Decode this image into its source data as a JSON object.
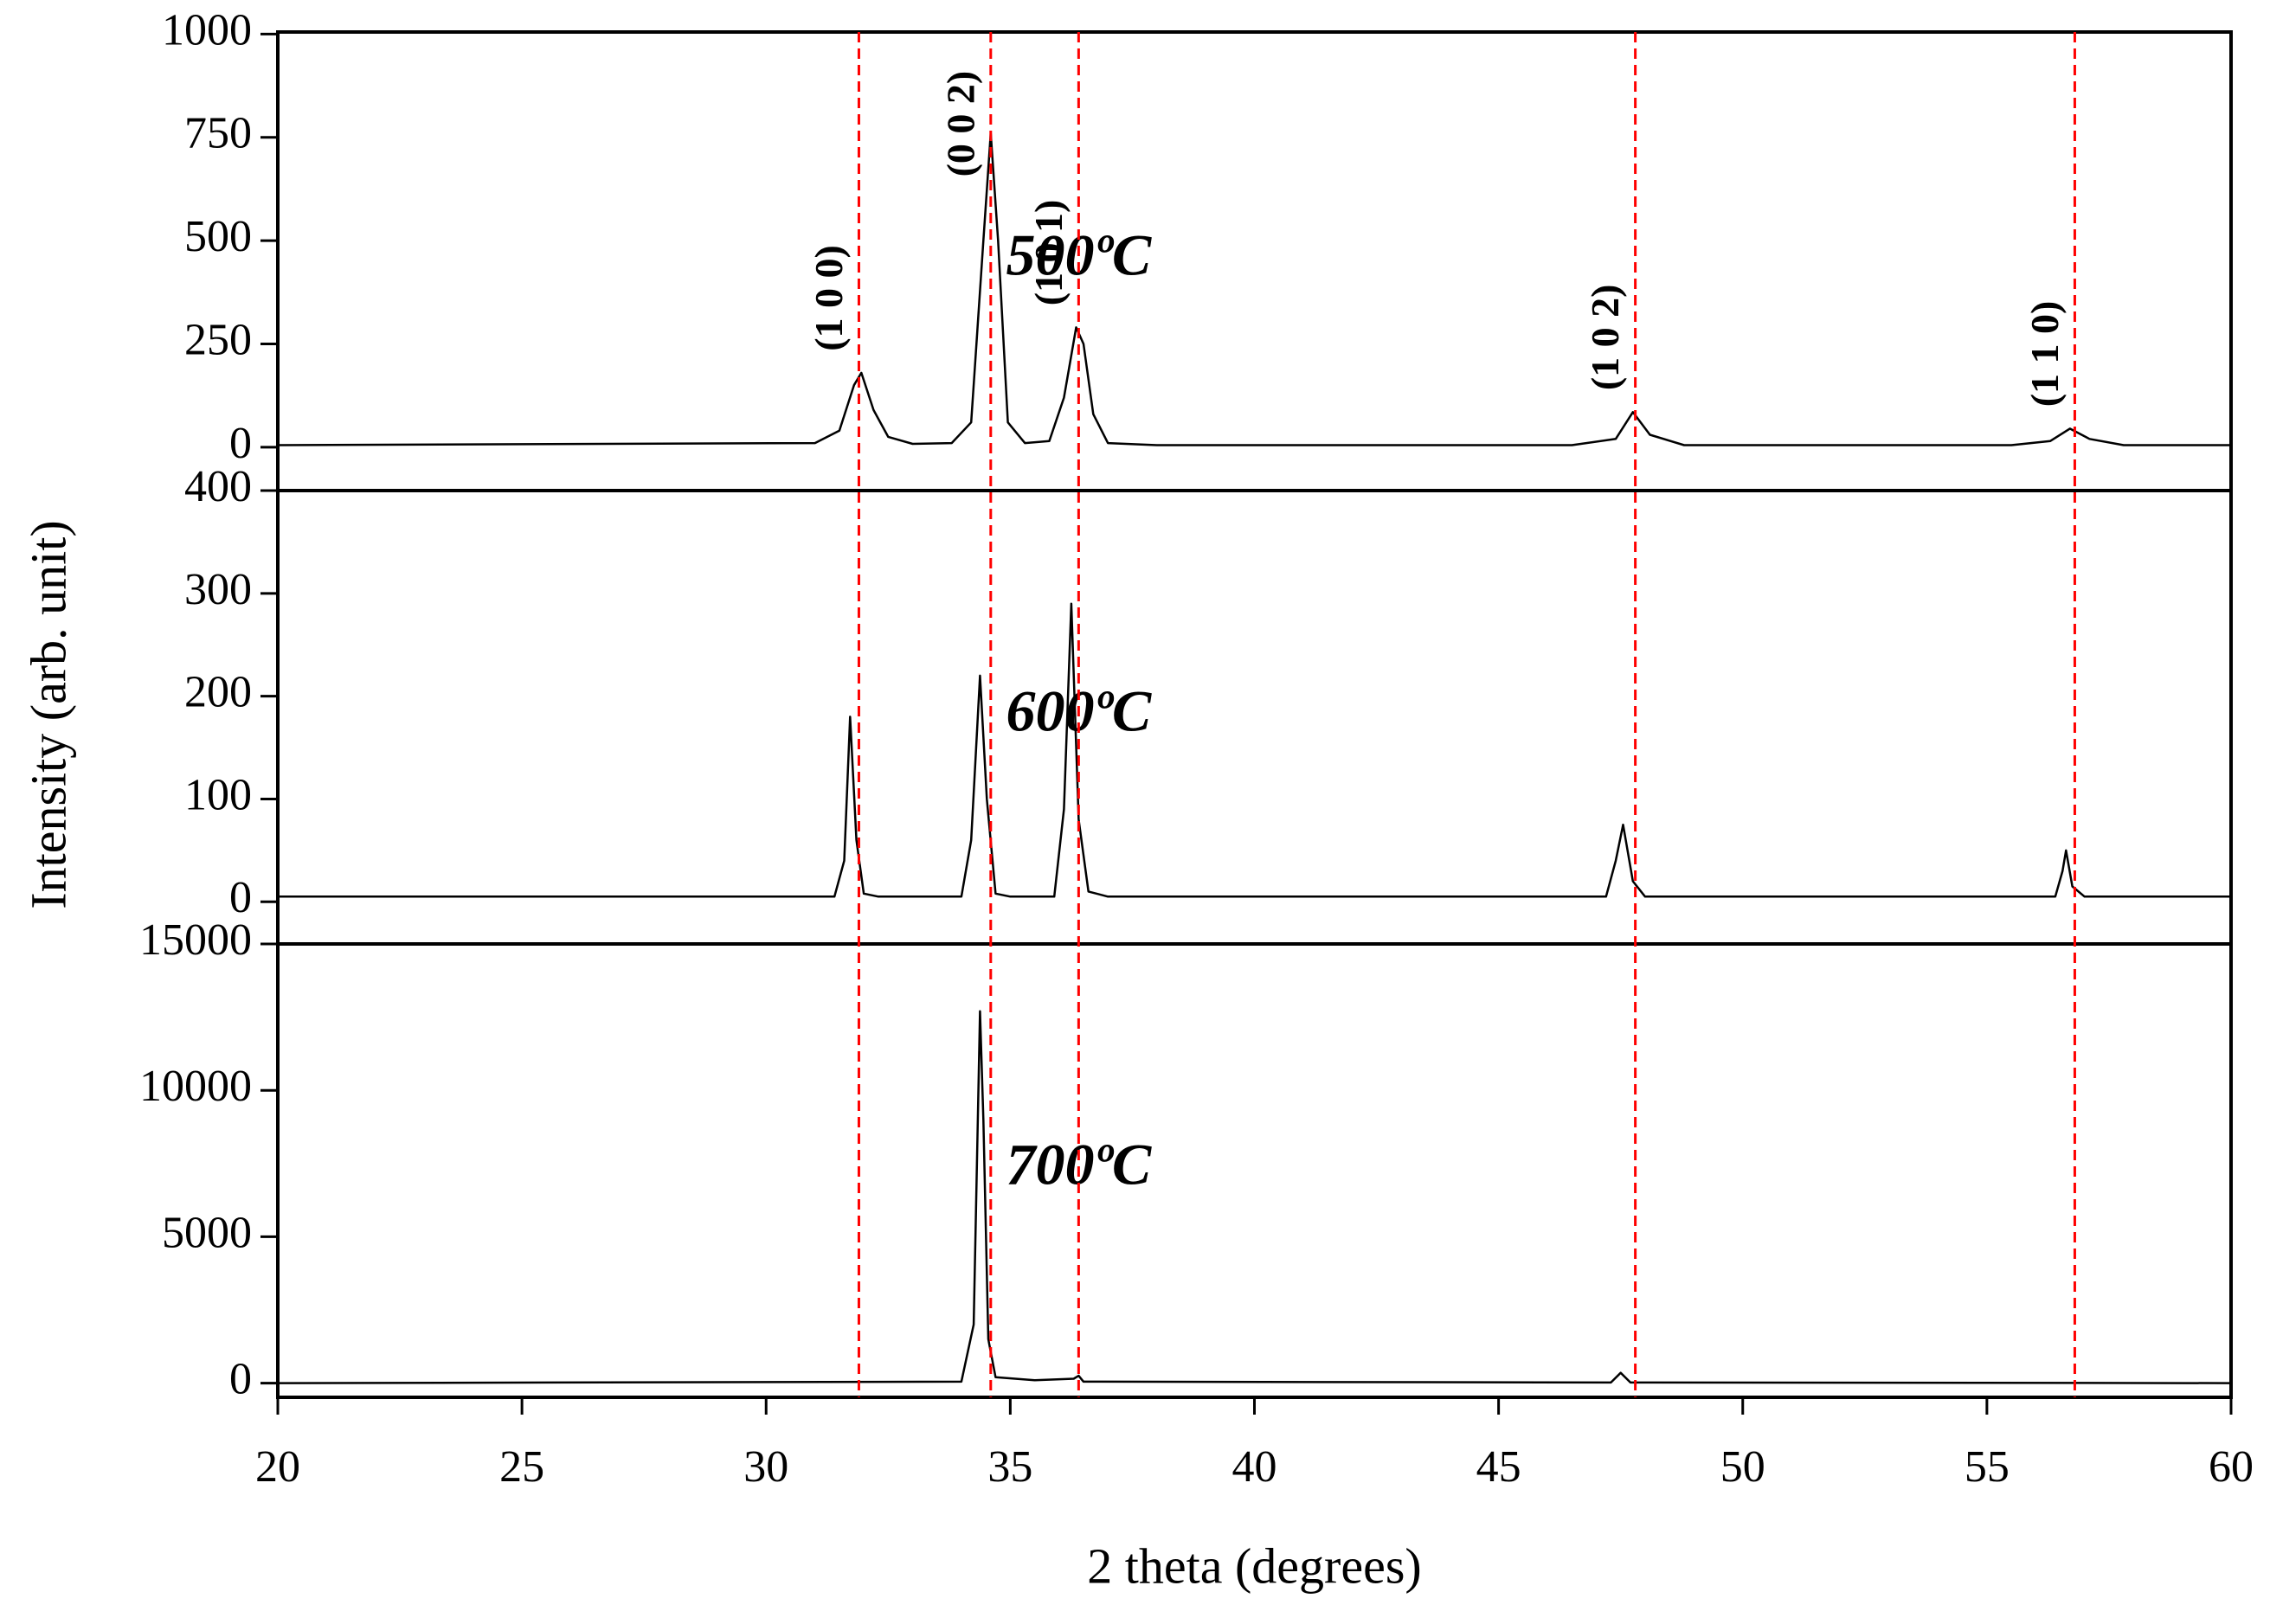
{
  "chart_data": [
    {
      "type": "line",
      "annotation": "500ºC",
      "color": "#000000",
      "reference_color": "#ff0000",
      "xlim": [
        20,
        60
      ],
      "ylim": [
        -105,
        1005
      ],
      "yticks": [
        0,
        250,
        500,
        750,
        1000
      ],
      "x": [
        20,
        31.0,
        31.5,
        31.8,
        31.95,
        32.2,
        32.5,
        33,
        33.8,
        34.2,
        34.45,
        34.6,
        34.75,
        34.95,
        35.3,
        35.8,
        36.1,
        36.35,
        36.5,
        36.7,
        37,
        38,
        46.5,
        47.4,
        47.75,
        48.1,
        48.8,
        55.5,
        56.3,
        56.7,
        57.1,
        57.8,
        60
      ],
      "values": [
        5,
        10,
        40,
        150,
        180,
        90,
        25,
        8,
        10,
        60,
        500,
        760,
        500,
        60,
        10,
        15,
        120,
        290,
        250,
        80,
        10,
        5,
        5,
        20,
        85,
        30,
        5,
        5,
        15,
        45,
        20,
        5,
        5
      ],
      "reference_lines": [
        {
          "x": 31.9,
          "label": "(1 0 0)"
        },
        {
          "x": 34.6,
          "label": "(0 0 2)"
        },
        {
          "x": 36.4,
          "label": "(1 0 1)"
        },
        {
          "x": 47.8,
          "label": "(1 0 2)"
        },
        {
          "x": 56.8,
          "label": "(1 1 0)"
        }
      ]
    },
    {
      "type": "line",
      "annotation": "600ºC",
      "color": "#000000",
      "ylabel": "Intensity (arb. unit)",
      "xlim": [
        20,
        60
      ],
      "ylim": [
        -41,
        400
      ],
      "yticks": [
        0,
        100,
        200,
        300,
        400
      ],
      "x": [
        20,
        31.4,
        31.6,
        31.72,
        31.85,
        32.0,
        32.3,
        34.0,
        34.2,
        34.38,
        34.52,
        34.7,
        35.0,
        35.9,
        36.1,
        36.25,
        36.4,
        36.6,
        37,
        47.2,
        47.4,
        47.55,
        47.75,
        48,
        56.4,
        56.55,
        56.62,
        56.75,
        57,
        60
      ],
      "values": [
        5,
        5,
        40,
        180,
        60,
        8,
        5,
        5,
        60,
        220,
        100,
        8,
        5,
        5,
        90,
        290,
        80,
        10,
        5,
        5,
        40,
        75,
        20,
        5,
        5,
        30,
        50,
        15,
        5,
        5
      ]
    },
    {
      "type": "line",
      "annotation": "700ºC",
      "color": "#000000",
      "xlabel": "2 theta (degrees)",
      "xlim": [
        20,
        60
      ],
      "ylim": [
        -485,
        15000
      ],
      "yticks": [
        0,
        5000,
        10000,
        15000
      ],
      "xticks": [
        20,
        25,
        30,
        35,
        40,
        45,
        50,
        55,
        60
      ],
      "x": [
        20,
        34.0,
        34.25,
        34.38,
        34.45,
        34.55,
        34.7,
        35.5,
        36.3,
        36.4,
        36.5,
        47.3,
        47.5,
        47.7,
        60
      ],
      "values": [
        0,
        50,
        2000,
        12700,
        9000,
        1500,
        200,
        100,
        150,
        250,
        50,
        20,
        350,
        20,
        0
      ]
    }
  ]
}
